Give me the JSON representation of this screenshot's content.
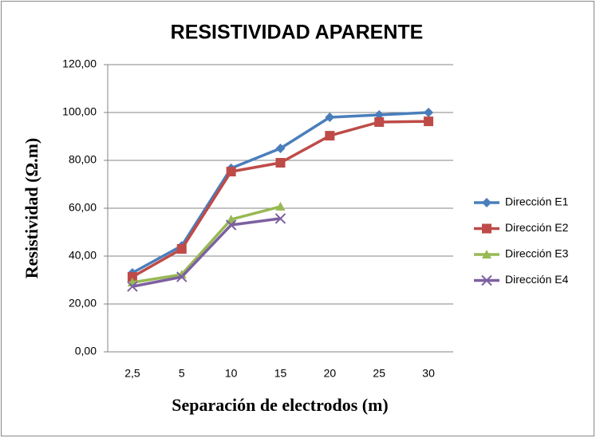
{
  "chart_data": {
    "type": "line",
    "title": "RESISTIVIDAD APARENTE",
    "x_label": "Separación de electrodos (m)",
    "y_label": "Resistividad (Ω.m)",
    "categories": [
      "2,5",
      "5",
      "10",
      "15",
      "20",
      "25",
      "30"
    ],
    "series": [
      {
        "name": "Dirección E1",
        "color": "#4a7ebb",
        "marker": "diamond",
        "values": [
          33,
          44.3,
          76.7,
          85,
          98,
          99,
          100
        ]
      },
      {
        "name": "Dirección E2",
        "color": "#be4b48",
        "marker": "square",
        "values": [
          31.3,
          43,
          75.3,
          79,
          90.3,
          96,
          96.3
        ]
      },
      {
        "name": "Dirección E3",
        "color": "#98b954",
        "marker": "triangle",
        "values": [
          29,
          32.3,
          55.3,
          60.7,
          null,
          null,
          null
        ]
      },
      {
        "name": "Dirección E4",
        "color": "#7d60a0",
        "marker": "x",
        "values": [
          27.3,
          31.3,
          53,
          55.7,
          null,
          null,
          null
        ]
      }
    ],
    "ylim": [
      0,
      120
    ],
    "yticks": [
      {
        "value": 0,
        "label": "0,00"
      },
      {
        "value": 20,
        "label": "20,00"
      },
      {
        "value": 40,
        "label": "40,00"
      },
      {
        "value": 60,
        "label": "60,00"
      },
      {
        "value": 80,
        "label": "80,00"
      },
      {
        "value": 100,
        "label": "100,00"
      },
      {
        "value": 120,
        "label": "120,00"
      }
    ],
    "grid": true,
    "legend": "right"
  }
}
